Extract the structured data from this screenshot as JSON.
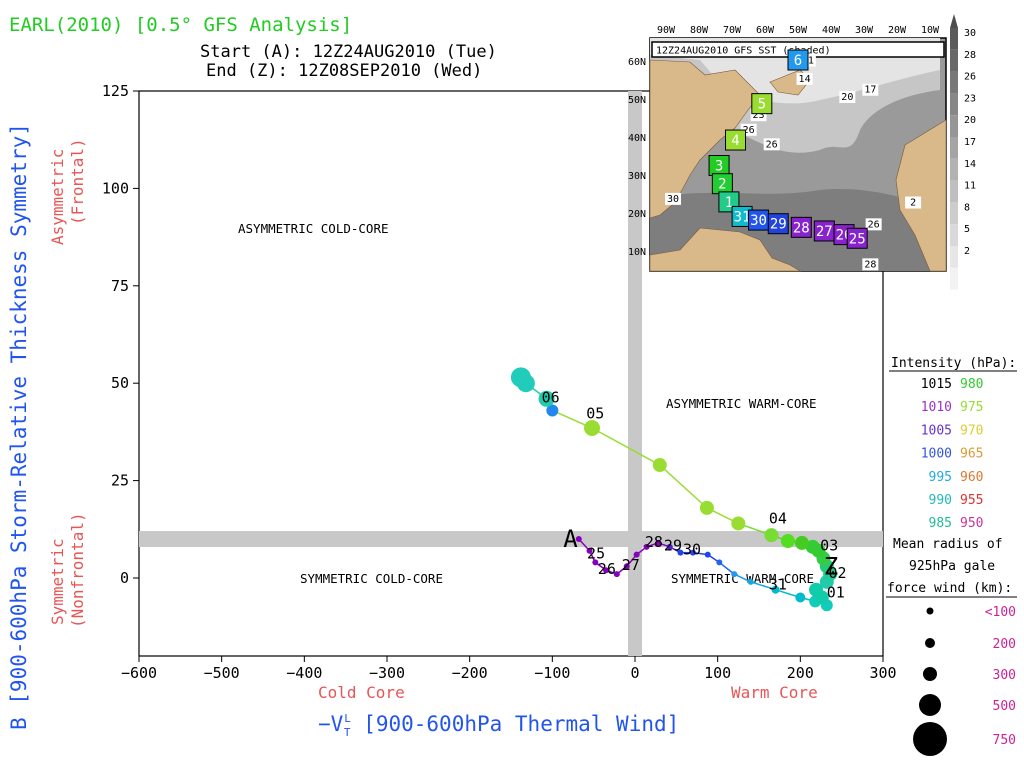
{
  "chart_data": {
    "type": "scatter",
    "title": "EARL(2010) [0.5° GFS Analysis]",
    "start_label": "Start (A): 12Z24AUG2010 (Tue)",
    "end_label": "End (Z): 12Z08SEP2010 (Wed)",
    "xlabel": "-V_T^L [900-600hPa Thermal Wind]",
    "xlabel_main": "−V",
    "xlabel_sup": "L",
    "xlabel_sub": "T",
    "xlabel_rest": " [900-600hPa Thermal Wind]",
    "ylabel": "B [900-600hPa Storm-Relative Thickness Symmetry]",
    "xlim": [
      -600,
      300
    ],
    "ylim": [
      -20,
      125
    ],
    "x_ticks": [
      -600,
      -500,
      -400,
      -300,
      -200,
      -100,
      0,
      100,
      200,
      300
    ],
    "y_ticks": [
      0,
      25,
      50,
      75,
      100,
      125
    ],
    "x_side_labels": {
      "left": "Cold Core",
      "right": "Warm Core"
    },
    "y_side_labels": {
      "upper_1": "Asymmetric",
      "upper_2": "(Frontal)",
      "lower_1": "Symmetric",
      "lower_2": "(Nonfrontal)"
    },
    "region_labels": {
      "asym_cold": "ASYMMETRIC COLD-CORE",
      "asym_warm": "ASYMMETRIC WARM-CORE",
      "sym_cold": "SYMMETRIC COLD-CORE",
      "sym_warm": "SYMMETRIC WARM-CORE"
    },
    "threshold_lines": {
      "x": 0,
      "y": 10
    },
    "track": [
      {
        "x": -68,
        "y": 10,
        "color": "#8800bb",
        "size": 3
      },
      {
        "x": -55,
        "y": 7,
        "color": "#8800bb",
        "size": 3
      },
      {
        "x": -48,
        "y": 4,
        "color": "#8800bb",
        "size": 3
      },
      {
        "x": -35,
        "y": 2,
        "color": "#8800bb",
        "size": 3
      },
      {
        "x": -22,
        "y": 1,
        "color": "#8800bb",
        "size": 3
      },
      {
        "x": -10,
        "y": 3,
        "color": "#8800bb",
        "size": 3
      },
      {
        "x": 2,
        "y": 6,
        "color": "#8800bb",
        "size": 3
      },
      {
        "x": 14,
        "y": 8,
        "color": "#8800bb",
        "size": 3
      },
      {
        "x": 28,
        "y": 9,
        "color": "#8800bb",
        "size": 3
      },
      {
        "x": 42,
        "y": 8,
        "color": "#5522cc",
        "size": 3
      },
      {
        "x": 55,
        "y": 6.5,
        "color": "#2244ee",
        "size": 3
      },
      {
        "x": 70,
        "y": 6.5,
        "color": "#2244ee",
        "size": 3
      },
      {
        "x": 88,
        "y": 6,
        "color": "#2244ee",
        "size": 3
      },
      {
        "x": 102,
        "y": 4,
        "color": "#2266ee",
        "size": 3
      },
      {
        "x": 120,
        "y": 1,
        "color": "#2299ee",
        "size": 3
      },
      {
        "x": 140,
        "y": -1,
        "color": "#11aadd",
        "size": 3
      },
      {
        "x": 170,
        "y": -3,
        "color": "#00bbcc",
        "size": 4
      },
      {
        "x": 200,
        "y": -5,
        "color": "#00bbcc",
        "size": 5
      },
      {
        "x": 218,
        "y": -6,
        "color": "#11ccbb",
        "size": 6
      },
      {
        "x": 232,
        "y": -7,
        "color": "#11ccbb",
        "size": 6
      },
      {
        "x": 226,
        "y": -5,
        "color": "#11ccaa",
        "size": 7
      },
      {
        "x": 219,
        "y": -3,
        "color": "#11ccaa",
        "size": 7
      },
      {
        "x": 232,
        "y": -1,
        "color": "#22ccaa",
        "size": 7
      },
      {
        "x": 236,
        "y": 1,
        "color": "#22cc99",
        "size": 7
      },
      {
        "x": 232,
        "y": 3,
        "color": "#22cc77",
        "size": 7
      },
      {
        "x": 228,
        "y": 5,
        "color": "#33cc44",
        "size": 7
      },
      {
        "x": 222,
        "y": 7,
        "color": "#33cc33",
        "size": 7
      },
      {
        "x": 215,
        "y": 8,
        "color": "#33cc33",
        "size": 7
      },
      {
        "x": 202,
        "y": 9,
        "color": "#44cc22",
        "size": 7
      },
      {
        "x": 185,
        "y": 9.5,
        "color": "#55dd22",
        "size": 7
      },
      {
        "x": 165,
        "y": 11,
        "color": "#77dd33",
        "size": 7
      },
      {
        "x": 125,
        "y": 14,
        "color": "#99dd33",
        "size": 7
      },
      {
        "x": 87,
        "y": 18,
        "color": "#99dd33",
        "size": 7
      },
      {
        "x": 30,
        "y": 29,
        "color": "#99dd33",
        "size": 7
      },
      {
        "x": -52,
        "y": 38.5,
        "color": "#99dd33",
        "size": 8
      },
      {
        "x": -100,
        "y": 43,
        "color": "#2288ee",
        "size": 6
      },
      {
        "x": -107,
        "y": 46,
        "color": "#22ccaa",
        "size": 8
      },
      {
        "x": -132,
        "y": 50,
        "color": "#22ccbb",
        "size": 9
      },
      {
        "x": -138,
        "y": 51.5,
        "color": "#22ccbb",
        "size": 10
      }
    ],
    "track_labels": [
      {
        "text": "25",
        "x": -58,
        "y": 5
      },
      {
        "text": "26",
        "x": -45,
        "y": 1
      },
      {
        "text": "27",
        "x": -16,
        "y": 2
      },
      {
        "text": "28",
        "x": 12,
        "y": 8
      },
      {
        "text": "29",
        "x": 35,
        "y": 7
      },
      {
        "text": "30",
        "x": 58,
        "y": 6
      },
      {
        "text": "31",
        "x": 162,
        "y": -3
      },
      {
        "text": "01",
        "x": 232,
        "y": -5
      },
      {
        "text": "02",
        "x": 234,
        "y": 0
      },
      {
        "text": "03",
        "x": 224,
        "y": 7
      },
      {
        "text": "04",
        "x": 162,
        "y": 14
      },
      {
        "text": "05",
        "x": -59,
        "y": 41
      },
      {
        "text": "06",
        "x": -113,
        "y": 45
      }
    ],
    "start_marker": {
      "text": "A",
      "x": -78,
      "y": 10
    },
    "end_marker": {
      "text": "Z",
      "x": 237,
      "y": 3
    },
    "intensity_legend": {
      "title": "Intensity (hPa):",
      "rows": [
        {
          "left": "1015",
          "left_color": "#000000",
          "right": "980",
          "right_color": "#33cc33"
        },
        {
          "left": "1010",
          "left_color": "#9933cc",
          "right": "975",
          "right_color": "#99dd33"
        },
        {
          "left": "1005",
          "left_color": "#6633cc",
          "right": "970",
          "right_color": "#ddcc33"
        },
        {
          "left": "1000",
          "left_color": "#3355dd",
          "right": "965",
          "right_color": "#dd9933"
        },
        {
          "left": "995",
          "left_color": "#22aadd",
          "right": "960",
          "right_color": "#dd7733"
        },
        {
          "left": "990",
          "left_color": "#22bbbb",
          "right": "955",
          "right_color": "#dd3333"
        },
        {
          "left": "985",
          "left_color": "#22bb99",
          "right": "950",
          "right_color": "#cc3399"
        }
      ]
    },
    "radius_legend": {
      "title_1": "Mean radius of",
      "title_2": "925hPa gale",
      "title_3": "force wind (km):",
      "sizes": [
        {
          "label": "<100",
          "r": 3.5
        },
        {
          "label": "200",
          "r": 5
        },
        {
          "label": "300",
          "r": 7
        },
        {
          "label": "500",
          "r": 11
        },
        {
          "label": "750",
          "r": 17
        }
      ],
      "label_color": "#cc2299"
    }
  },
  "inset_map": {
    "title": "12Z24AUG2010 GFS SST (shaded)",
    "lon_labels": [
      "90W",
      "80W",
      "70W",
      "60W",
      "50W",
      "40W",
      "30W",
      "20W",
      "10W"
    ],
    "lat_labels": [
      "60N",
      "50N",
      "40N",
      "30N",
      "20N",
      "10N"
    ],
    "colorbar_labels": [
      "30",
      "28",
      "26",
      "23",
      "20",
      "17",
      "14",
      "11",
      "8",
      "5",
      "2"
    ],
    "sst_labels": [
      {
        "text": "11",
        "lon": -47,
        "lat": 62
      },
      {
        "text": "14",
        "lon": -48,
        "lat": 57
      },
      {
        "text": "17",
        "lon": -28,
        "lat": 54
      },
      {
        "text": "20",
        "lon": -35,
        "lat": 52
      },
      {
        "text": "23",
        "lon": -62,
        "lat": 47
      },
      {
        "text": "26",
        "lon": -65,
        "lat": 43
      },
      {
        "text": "26",
        "lon": -58,
        "lat": 39
      },
      {
        "text": "30",
        "lon": -88,
        "lat": 24
      },
      {
        "text": "26",
        "lon": -27,
        "lat": 17
      },
      {
        "text": "2",
        "lon": -15,
        "lat": 23
      },
      {
        "text": "28",
        "lon": -28,
        "lat": 6
      }
    ],
    "track_boxes": [
      {
        "text": "6",
        "lon": -50,
        "lat": 63,
        "color": "#2299ee"
      },
      {
        "text": "5",
        "lon": -61,
        "lat": 51,
        "color": "#99dd33"
      },
      {
        "text": "4",
        "lon": -69,
        "lat": 41,
        "color": "#99dd33"
      },
      {
        "text": "3",
        "lon": -74,
        "lat": 34,
        "color": "#22cc22"
      },
      {
        "text": "2",
        "lon": -73,
        "lat": 29,
        "color": "#22cc33"
      },
      {
        "text": "1",
        "lon": -71,
        "lat": 24,
        "color": "#22cc88"
      },
      {
        "text": "31",
        "lon": -67,
        "lat": 20,
        "color": "#11bbcc"
      },
      {
        "text": "30",
        "lon": -62,
        "lat": 19,
        "color": "#2255ee"
      },
      {
        "text": "29",
        "lon": -56,
        "lat": 18,
        "color": "#2244dd"
      },
      {
        "text": "28",
        "lon": -49,
        "lat": 17,
        "color": "#8822cc"
      },
      {
        "text": "27",
        "lon": -42,
        "lat": 16,
        "color": "#8822cc"
      },
      {
        "text": "26",
        "lon": -36,
        "lat": 15,
        "color": "#8822cc"
      },
      {
        "text": "25",
        "lon": -32,
        "lat": 14,
        "color": "#8822cc"
      }
    ]
  }
}
